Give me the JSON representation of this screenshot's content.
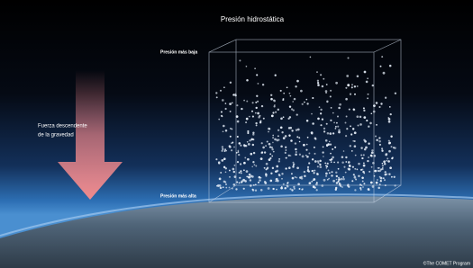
{
  "title": "Presión hidrostática",
  "box_labels": {
    "top": "Presión más baja",
    "bottom": "Presión más alta"
  },
  "force_label": [
    "Fuerza descendente",
    "de la gravedad"
  ],
  "credit": "©The COMET Program"
}
